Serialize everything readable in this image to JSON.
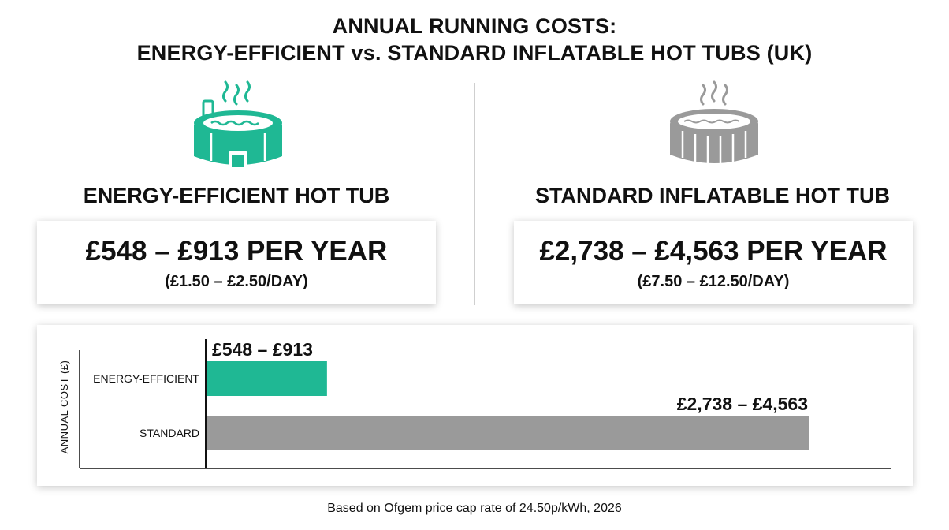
{
  "header": {
    "title_line1": "ANNUAL RUNNING COSTS:",
    "title_line2": "ENERGY-EFFICIENT vs. STANDARD INFLATABLE HOT TUBS (UK)"
  },
  "efficient": {
    "icon": "hot-tub-icon",
    "heading": "ENERGY-EFFICIENT HOT TUB",
    "cost_year": "£548 – £913 PER YEAR",
    "cost_day": "(£1.50 – £2.50/DAY)",
    "color": "#1fb894"
  },
  "standard": {
    "icon": "hot-tub-icon",
    "heading": "STANDARD INFLATABLE HOT TUB",
    "cost_year": "£2,738 – £4,563 PER YEAR",
    "cost_day": "(£7.50 – £12.50/DAY)",
    "color": "#9a9a9a"
  },
  "chart_data": {
    "type": "bar",
    "orientation": "horizontal",
    "title": "",
    "ylabel": "ANNUAL COST (£)",
    "xlabel": "",
    "categories": [
      "ENERGY-EFFICIENT",
      "STANDARD"
    ],
    "series": [
      {
        "low": [
          548,
          2738
        ],
        "high": [
          913,
          4563
        ]
      }
    ],
    "data_labels": [
      "£548 – £913",
      "£2,738 – £4,563"
    ],
    "colors": [
      "#1fb894",
      "#9a9a9a"
    ],
    "xlim": [
      0,
      4563
    ],
    "grid": false,
    "legend": "none"
  },
  "footnote": "Based on Ofgem price cap rate of 24.50p/kWh, 2026"
}
